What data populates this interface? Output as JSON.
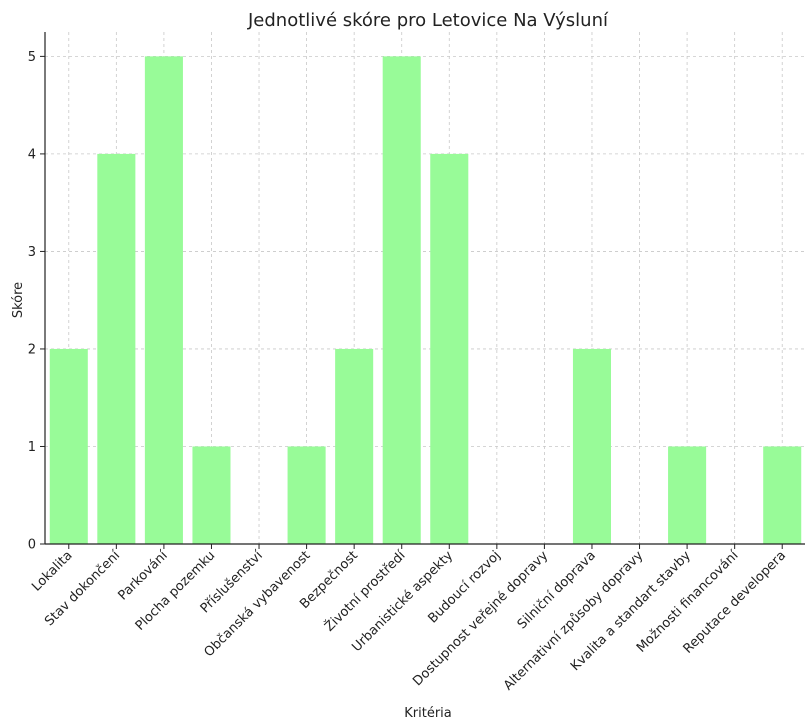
{
  "chart_data": {
    "type": "bar",
    "title": "Jednotlivé skóre pro Letovice Na Výsluní",
    "xlabel": "Kritéria",
    "ylabel": "Skóre",
    "categories": [
      "Lokalita",
      "Stav dokončení",
      "Parkování",
      "Plocha pozemku",
      "Příslušenství",
      "Občanská vybavenost",
      "Bezpečnost",
      "Životní prostředí",
      "Urbanistické aspekty",
      "Budoucí rozvoj",
      "Dostupnost veřejné dopravy",
      "Silniční doprava",
      "Alternativní způsoby dopravy",
      "Kvalita a standart stavby",
      "Možnosti financování",
      "Reputace developera"
    ],
    "values": [
      2,
      4,
      5,
      1,
      0,
      1,
      2,
      5,
      4,
      0,
      0,
      2,
      0,
      1,
      0,
      1
    ],
    "ylim": [
      0,
      5.25
    ],
    "yticks": [
      0,
      1,
      2,
      3,
      4,
      5
    ],
    "bar_color": "#98fb98",
    "grid": true
  }
}
